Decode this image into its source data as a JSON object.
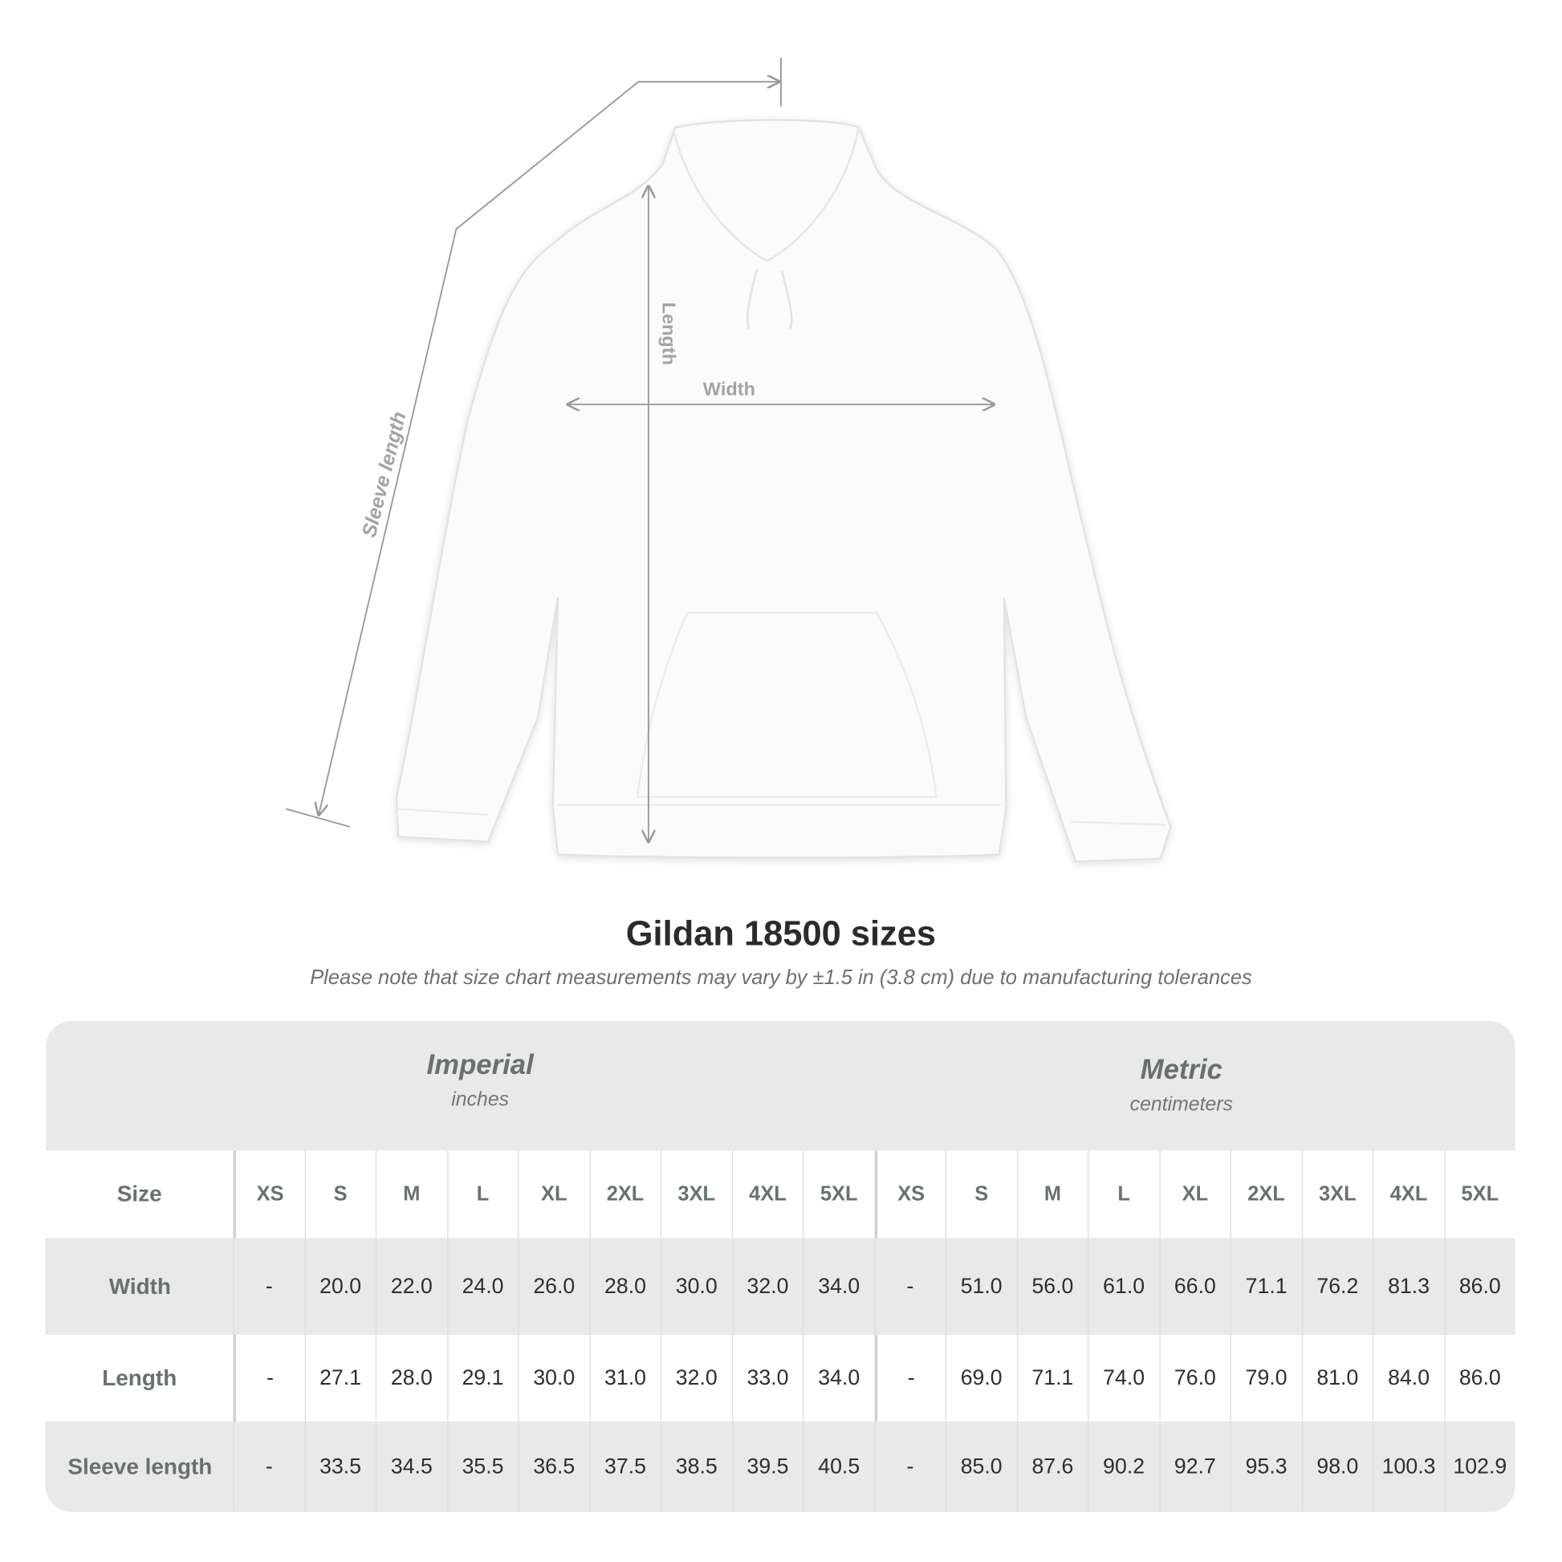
{
  "diagram": {
    "labels": {
      "sleeve": "Sleeve length",
      "length": "Length",
      "width": "Width"
    },
    "line_color": "#999999"
  },
  "title": "Gildan 18500 sizes",
  "subtitle": "Please note that size chart measurements may vary by ±1.5 in (3.8 cm) due to manufacturing tolerances",
  "table": {
    "imperial": {
      "name": "Imperial",
      "unit": "inches"
    },
    "metric": {
      "name": "Metric",
      "unit": "centimeters"
    },
    "header_label": "Size",
    "sizes": [
      "XS",
      "S",
      "M",
      "L",
      "XL",
      "2XL",
      "3XL",
      "4XL",
      "5XL"
    ],
    "rows": [
      {
        "label": "Width",
        "imperial": [
          "-",
          "20.0",
          "22.0",
          "24.0",
          "26.0",
          "28.0",
          "30.0",
          "32.0",
          "34.0"
        ],
        "metric": [
          "-",
          "51.0",
          "56.0",
          "61.0",
          "66.0",
          "71.1",
          "76.2",
          "81.3",
          "86.0"
        ]
      },
      {
        "label": "Length",
        "imperial": [
          "-",
          "27.1",
          "28.0",
          "29.1",
          "30.0",
          "31.0",
          "32.0",
          "33.0",
          "34.0"
        ],
        "metric": [
          "-",
          "69.0",
          "71.1",
          "74.0",
          "76.0",
          "79.0",
          "81.0",
          "84.0",
          "86.0"
        ]
      },
      {
        "label": "Sleeve length",
        "imperial": [
          "-",
          "33.5",
          "34.5",
          "35.5",
          "36.5",
          "37.5",
          "38.5",
          "39.5",
          "40.5"
        ],
        "metric": [
          "-",
          "85.0",
          "87.6",
          "90.2",
          "92.7",
          "95.3",
          "98.0",
          "100.3",
          "102.9"
        ]
      }
    ],
    "colors": {
      "band": "#e9e9e9",
      "label": "#6a7070",
      "value": "#2e2e2e"
    }
  }
}
